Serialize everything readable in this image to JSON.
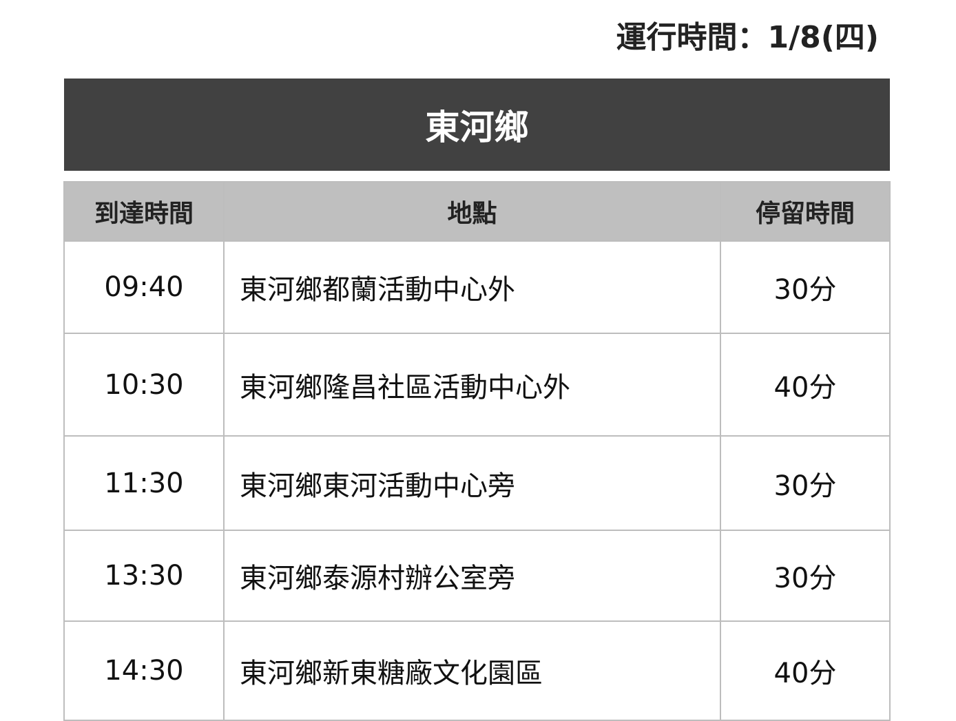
{
  "date_label": "運行時間：1/8(四)",
  "title": "東河鄉",
  "headers": [
    "到達時間",
    "地點",
    "停留時間"
  ],
  "rows": [
    {
      "time": "09:40",
      "place": "東河鄉都蘭活動中心外",
      "stay": "30分"
    },
    {
      "time": "10:30",
      "place": "東河鄉隆昌社區活動中心外",
      "stay": "40分"
    },
    {
      "time": "11:30",
      "place": "東河鄉東河活動中心旁",
      "stay": "30分"
    },
    {
      "time": "13:30",
      "place": "東河鄉泰源村辦公室旁",
      "stay": "30分"
    },
    {
      "time": "14:30",
      "place": "東河鄉新東糖廠文化園區",
      "stay": "40分"
    }
  ]
}
